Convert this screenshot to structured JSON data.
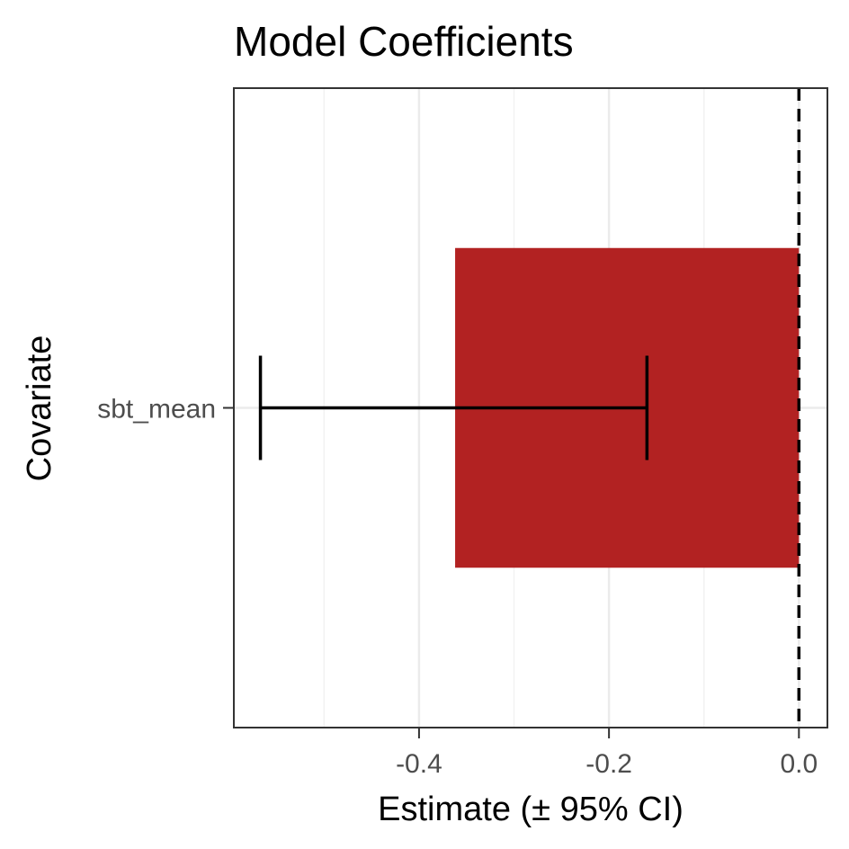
{
  "chart_data": {
    "type": "bar",
    "orientation": "horizontal",
    "title": "Model Coefficients",
    "xlabel": "Estimate (± 95% CI)",
    "ylabel": "Covariate",
    "categories": [
      "sbt_mean"
    ],
    "values": [
      -0.362
    ],
    "ci_lower": [
      -0.567
    ],
    "ci_upper": [
      -0.16
    ],
    "xlim": [
      -0.595,
      0.03
    ],
    "xticks": [
      -0.4,
      -0.2,
      0.0
    ],
    "xtick_labels": [
      "-0.4",
      "-0.2",
      "0.0"
    ],
    "reference_line": 0.0,
    "grid": true,
    "bar_color": "#b22222"
  }
}
